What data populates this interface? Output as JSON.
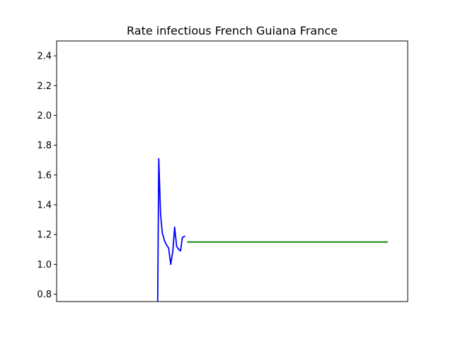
{
  "chart_data": {
    "type": "line",
    "title": "Rate infectious French Guiana France",
    "xlabel": "",
    "ylabel": "",
    "ylim": [
      0.75,
      2.5
    ],
    "xlim": [
      0,
      100
    ],
    "x_ticks_visible": false,
    "yticks": [
      "0.8",
      "1.0",
      "1.2",
      "1.4",
      "1.6",
      "1.8",
      "2.0",
      "2.2",
      "2.4"
    ],
    "grid": false,
    "legend": "none",
    "series": [
      {
        "color": "#0000ff",
        "points": [
          [
            28.8,
            0.75
          ],
          [
            29.1,
            1.71
          ],
          [
            29.6,
            1.34
          ],
          [
            30.1,
            1.21
          ],
          [
            30.7,
            1.16
          ],
          [
            31.3,
            1.13
          ],
          [
            31.9,
            1.11
          ],
          [
            32.5,
            1.0
          ],
          [
            33.1,
            1.09
          ],
          [
            33.6,
            1.25
          ],
          [
            34.2,
            1.12
          ],
          [
            34.8,
            1.1
          ],
          [
            35.3,
            1.09
          ],
          [
            35.8,
            1.18
          ],
          [
            36.6,
            1.19
          ]
        ]
      },
      {
        "color": "#008000",
        "points": [
          [
            37.2,
            1.15
          ],
          [
            94.3,
            1.15
          ]
        ]
      }
    ]
  }
}
